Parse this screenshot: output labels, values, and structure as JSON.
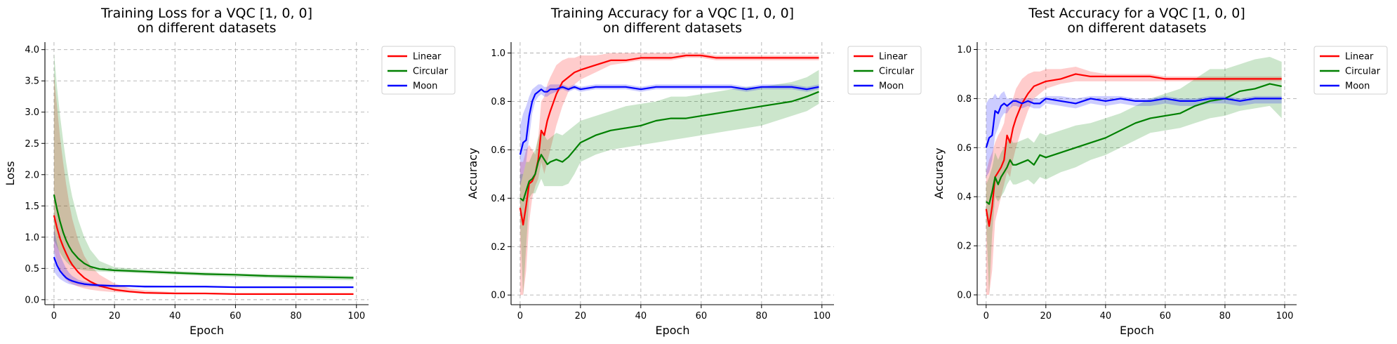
{
  "colors": {
    "Linear": "#ff0000",
    "Circular": "#008000",
    "Moon": "#0000ff"
  },
  "chart_data": [
    {
      "type": "line",
      "title": "Training Loss for a VQC [1, 0, 0]",
      "subtitle": "on different datasets",
      "xlabel": "Epoch",
      "ylabel": "Loss",
      "xlim": [
        -3,
        104
      ],
      "ylim": [
        -0.08,
        4.12
      ],
      "xticks": [
        0,
        20,
        40,
        60,
        80,
        100
      ],
      "yticks": [
        0.0,
        0.5,
        1.0,
        1.5,
        2.0,
        2.5,
        3.0,
        3.5,
        4.0
      ],
      "ytick_labels": [
        "0.0",
        "0.5",
        "1.0",
        "1.5",
        "2.0",
        "2.5",
        "3.0",
        "3.5",
        "4.0"
      ],
      "grid": true,
      "legend": "outside-top-right",
      "x": [
        0,
        1,
        2,
        3,
        4,
        5,
        6,
        8,
        10,
        12,
        15,
        20,
        25,
        30,
        40,
        50,
        60,
        70,
        80,
        90,
        99
      ],
      "series": [
        {
          "name": "Linear",
          "values": [
            1.35,
            1.15,
            0.98,
            0.85,
            0.74,
            0.64,
            0.56,
            0.44,
            0.35,
            0.29,
            0.22,
            0.16,
            0.13,
            0.11,
            0.1,
            0.1,
            0.09,
            0.09,
            0.09,
            0.09,
            0.09
          ],
          "lower": [
            0.8,
            0.6,
            0.48,
            0.38,
            0.32,
            0.28,
            0.25,
            0.21,
            0.18,
            0.16,
            0.14,
            0.12,
            0.11,
            0.1,
            0.09,
            0.09,
            0.08,
            0.08,
            0.08,
            0.08,
            0.08
          ],
          "upper": [
            3.6,
            3.1,
            2.6,
            2.2,
            1.85,
            1.55,
            1.3,
            0.95,
            0.7,
            0.55,
            0.4,
            0.26,
            0.18,
            0.15,
            0.12,
            0.11,
            0.1,
            0.1,
            0.1,
            0.1,
            0.1
          ]
        },
        {
          "name": "Circular",
          "values": [
            1.68,
            1.45,
            1.25,
            1.08,
            0.95,
            0.85,
            0.77,
            0.66,
            0.58,
            0.53,
            0.49,
            0.47,
            0.46,
            0.45,
            0.43,
            0.41,
            0.4,
            0.38,
            0.37,
            0.36,
            0.35
          ],
          "lower": [
            0.95,
            0.85,
            0.75,
            0.67,
            0.61,
            0.56,
            0.53,
            0.49,
            0.47,
            0.46,
            0.45,
            0.44,
            0.43,
            0.42,
            0.4,
            0.38,
            0.36,
            0.35,
            0.33,
            0.32,
            0.31
          ],
          "upper": [
            3.95,
            3.4,
            2.95,
            2.55,
            2.2,
            1.9,
            1.65,
            1.28,
            1.0,
            0.8,
            0.62,
            0.52,
            0.5,
            0.48,
            0.46,
            0.44,
            0.42,
            0.41,
            0.4,
            0.39,
            0.38
          ]
        },
        {
          "name": "Moon",
          "values": [
            0.68,
            0.55,
            0.46,
            0.4,
            0.35,
            0.32,
            0.3,
            0.27,
            0.25,
            0.24,
            0.23,
            0.22,
            0.22,
            0.21,
            0.21,
            0.21,
            0.2,
            0.2,
            0.2,
            0.2,
            0.2
          ],
          "lower": [
            0.45,
            0.38,
            0.33,
            0.3,
            0.27,
            0.25,
            0.24,
            0.22,
            0.21,
            0.21,
            0.2,
            0.2,
            0.2,
            0.19,
            0.19,
            0.19,
            0.19,
            0.19,
            0.19,
            0.19,
            0.19
          ],
          "upper": [
            1.15,
            0.9,
            0.72,
            0.6,
            0.5,
            0.43,
            0.38,
            0.32,
            0.29,
            0.27,
            0.25,
            0.24,
            0.23,
            0.23,
            0.22,
            0.22,
            0.21,
            0.21,
            0.21,
            0.21,
            0.21
          ]
        }
      ]
    },
    {
      "type": "line",
      "title": "Training Accuracy for a VQC [1, 0, 0]",
      "subtitle": "on different datasets",
      "xlabel": "Epoch",
      "ylabel": "Accuracy",
      "xlim": [
        -3,
        104
      ],
      "ylim": [
        -0.04,
        1.045
      ],
      "xticks": [
        0,
        20,
        40,
        60,
        80,
        100
      ],
      "yticks": [
        0.0,
        0.2,
        0.4,
        0.6,
        0.8,
        1.0
      ],
      "ytick_labels": [
        "0.0",
        "0.2",
        "0.4",
        "0.6",
        "0.8",
        "1.0"
      ],
      "grid": true,
      "legend": "outside-top-right",
      "x": [
        0,
        1,
        2,
        3,
        4,
        5,
        6,
        7,
        8,
        9,
        10,
        12,
        14,
        16,
        18,
        20,
        25,
        30,
        35,
        40,
        45,
        50,
        55,
        60,
        65,
        70,
        75,
        80,
        85,
        90,
        95,
        99
      ],
      "series": [
        {
          "name": "Linear",
          "values": [
            0.36,
            0.29,
            0.37,
            0.46,
            0.47,
            0.5,
            0.56,
            0.68,
            0.66,
            0.72,
            0.76,
            0.83,
            0.88,
            0.9,
            0.92,
            0.93,
            0.95,
            0.97,
            0.97,
            0.98,
            0.98,
            0.98,
            0.99,
            0.99,
            0.98,
            0.98,
            0.98,
            0.98,
            0.98,
            0.98,
            0.98,
            0.98
          ],
          "lower": [
            0.0,
            0.0,
            0.1,
            0.3,
            0.4,
            0.45,
            0.48,
            0.55,
            0.5,
            0.55,
            0.6,
            0.7,
            0.78,
            0.84,
            0.87,
            0.89,
            0.92,
            0.95,
            0.96,
            0.97,
            0.97,
            0.97,
            0.98,
            0.98,
            0.97,
            0.97,
            0.97,
            0.97,
            0.97,
            0.97,
            0.97,
            0.97
          ],
          "upper": [
            0.55,
            0.55,
            0.6,
            0.62,
            0.6,
            0.58,
            0.65,
            0.8,
            0.82,
            0.87,
            0.9,
            0.95,
            0.97,
            0.98,
            0.98,
            0.99,
            0.99,
            1.0,
            1.0,
            1.0,
            1.0,
            1.0,
            1.0,
            1.0,
            0.99,
            0.99,
            0.99,
            0.99,
            0.99,
            0.99,
            0.99,
            0.99
          ]
        },
        {
          "name": "Circular",
          "values": [
            0.4,
            0.39,
            0.43,
            0.47,
            0.48,
            0.5,
            0.55,
            0.58,
            0.56,
            0.54,
            0.55,
            0.56,
            0.55,
            0.57,
            0.6,
            0.63,
            0.66,
            0.68,
            0.69,
            0.7,
            0.72,
            0.73,
            0.73,
            0.74,
            0.75,
            0.76,
            0.77,
            0.78,
            0.79,
            0.8,
            0.82,
            0.84
          ],
          "lower": [
            0.3,
            0.0,
            0.2,
            0.4,
            0.42,
            0.42,
            0.45,
            0.48,
            0.45,
            0.45,
            0.45,
            0.45,
            0.45,
            0.46,
            0.5,
            0.55,
            0.58,
            0.6,
            0.61,
            0.62,
            0.63,
            0.64,
            0.65,
            0.66,
            0.67,
            0.68,
            0.69,
            0.7,
            0.72,
            0.74,
            0.76,
            0.79
          ],
          "upper": [
            0.5,
            0.5,
            0.55,
            0.55,
            0.58,
            0.6,
            0.65,
            0.68,
            0.66,
            0.64,
            0.65,
            0.67,
            0.66,
            0.68,
            0.7,
            0.72,
            0.74,
            0.76,
            0.78,
            0.79,
            0.8,
            0.82,
            0.82,
            0.83,
            0.84,
            0.85,
            0.86,
            0.86,
            0.87,
            0.88,
            0.9,
            0.93
          ]
        },
        {
          "name": "Moon",
          "values": [
            0.58,
            0.63,
            0.64,
            0.74,
            0.8,
            0.83,
            0.84,
            0.85,
            0.84,
            0.84,
            0.85,
            0.85,
            0.86,
            0.85,
            0.86,
            0.85,
            0.86,
            0.86,
            0.86,
            0.85,
            0.86,
            0.86,
            0.86,
            0.86,
            0.86,
            0.86,
            0.85,
            0.86,
            0.86,
            0.86,
            0.85,
            0.86
          ],
          "lower": [
            0.45,
            0.5,
            0.55,
            0.65,
            0.75,
            0.8,
            0.82,
            0.83,
            0.82,
            0.82,
            0.83,
            0.84,
            0.85,
            0.84,
            0.85,
            0.84,
            0.85,
            0.85,
            0.85,
            0.84,
            0.85,
            0.85,
            0.85,
            0.85,
            0.85,
            0.85,
            0.84,
            0.85,
            0.85,
            0.85,
            0.84,
            0.85
          ],
          "upper": [
            0.7,
            0.75,
            0.78,
            0.82,
            0.85,
            0.86,
            0.87,
            0.87,
            0.86,
            0.86,
            0.87,
            0.87,
            0.87,
            0.86,
            0.87,
            0.86,
            0.87,
            0.87,
            0.87,
            0.86,
            0.87,
            0.87,
            0.87,
            0.87,
            0.87,
            0.87,
            0.86,
            0.87,
            0.87,
            0.87,
            0.86,
            0.87
          ]
        }
      ]
    },
    {
      "type": "line",
      "title": "Test Accuracy for a VQC [1, 0, 0]",
      "subtitle": "on different datasets",
      "xlabel": "Epoch",
      "ylabel": "Accuracy",
      "xlim": [
        -3,
        104
      ],
      "ylim": [
        -0.04,
        1.03
      ],
      "xticks": [
        0,
        20,
        40,
        60,
        80,
        100
      ],
      "yticks": [
        0.0,
        0.2,
        0.4,
        0.6,
        0.8,
        1.0
      ],
      "ytick_labels": [
        "0.0",
        "0.2",
        "0.4",
        "0.6",
        "0.8",
        "1.0"
      ],
      "grid": true,
      "legend": "outside-top-right",
      "x": [
        0,
        1,
        2,
        3,
        4,
        5,
        6,
        7,
        8,
        9,
        10,
        12,
        14,
        16,
        18,
        20,
        25,
        30,
        35,
        40,
        45,
        50,
        55,
        60,
        65,
        70,
        75,
        80,
        85,
        90,
        95,
        99
      ],
      "series": [
        {
          "name": "Linear",
          "values": [
            0.35,
            0.28,
            0.36,
            0.48,
            0.5,
            0.52,
            0.55,
            0.65,
            0.62,
            0.68,
            0.72,
            0.78,
            0.82,
            0.85,
            0.86,
            0.87,
            0.88,
            0.9,
            0.89,
            0.89,
            0.89,
            0.89,
            0.89,
            0.88,
            0.88,
            0.88,
            0.88,
            0.88,
            0.88,
            0.88,
            0.88,
            0.88
          ],
          "lower": [
            0.0,
            0.0,
            0.1,
            0.3,
            0.35,
            0.4,
            0.45,
            0.5,
            0.48,
            0.55,
            0.6,
            0.68,
            0.75,
            0.8,
            0.82,
            0.84,
            0.86,
            0.87,
            0.87,
            0.87,
            0.87,
            0.87,
            0.87,
            0.87,
            0.87,
            0.87,
            0.87,
            0.87,
            0.87,
            0.87,
            0.87,
            0.87
          ],
          "upper": [
            0.5,
            0.55,
            0.58,
            0.62,
            0.65,
            0.67,
            0.7,
            0.78,
            0.76,
            0.8,
            0.84,
            0.88,
            0.9,
            0.91,
            0.91,
            0.92,
            0.92,
            0.93,
            0.91,
            0.9,
            0.9,
            0.9,
            0.9,
            0.89,
            0.89,
            0.89,
            0.89,
            0.89,
            0.89,
            0.89,
            0.89,
            0.89
          ]
        },
        {
          "name": "Circular",
          "values": [
            0.38,
            0.37,
            0.42,
            0.48,
            0.45,
            0.48,
            0.5,
            0.52,
            0.55,
            0.53,
            0.53,
            0.54,
            0.55,
            0.53,
            0.57,
            0.56,
            0.58,
            0.6,
            0.62,
            0.64,
            0.67,
            0.7,
            0.72,
            0.73,
            0.74,
            0.77,
            0.79,
            0.8,
            0.83,
            0.84,
            0.86,
            0.85
          ],
          "lower": [
            0.3,
            0.0,
            0.25,
            0.4,
            0.38,
            0.4,
            0.42,
            0.45,
            0.47,
            0.45,
            0.45,
            0.46,
            0.47,
            0.45,
            0.48,
            0.47,
            0.5,
            0.52,
            0.55,
            0.57,
            0.6,
            0.63,
            0.66,
            0.67,
            0.68,
            0.7,
            0.72,
            0.73,
            0.75,
            0.76,
            0.77,
            0.72
          ],
          "upper": [
            0.45,
            0.48,
            0.52,
            0.58,
            0.55,
            0.58,
            0.6,
            0.62,
            0.64,
            0.62,
            0.62,
            0.63,
            0.64,
            0.62,
            0.66,
            0.65,
            0.67,
            0.69,
            0.7,
            0.72,
            0.74,
            0.77,
            0.8,
            0.82,
            0.84,
            0.88,
            0.92,
            0.92,
            0.94,
            0.96,
            0.97,
            0.95
          ]
        },
        {
          "name": "Moon",
          "values": [
            0.6,
            0.64,
            0.65,
            0.75,
            0.74,
            0.77,
            0.78,
            0.77,
            0.78,
            0.79,
            0.79,
            0.78,
            0.79,
            0.78,
            0.78,
            0.8,
            0.79,
            0.78,
            0.8,
            0.79,
            0.8,
            0.79,
            0.79,
            0.8,
            0.79,
            0.79,
            0.8,
            0.8,
            0.79,
            0.8,
            0.8,
            0.8
          ],
          "lower": [
            0.48,
            0.5,
            0.55,
            0.65,
            0.68,
            0.72,
            0.74,
            0.74,
            0.76,
            0.77,
            0.77,
            0.76,
            0.77,
            0.76,
            0.76,
            0.78,
            0.77,
            0.76,
            0.78,
            0.77,
            0.78,
            0.77,
            0.77,
            0.78,
            0.77,
            0.77,
            0.78,
            0.78,
            0.77,
            0.78,
            0.78,
            0.78
          ],
          "upper": [
            0.78,
            0.8,
            0.8,
            0.82,
            0.8,
            0.82,
            0.83,
            0.8,
            0.8,
            0.8,
            0.8,
            0.8,
            0.8,
            0.8,
            0.8,
            0.81,
            0.81,
            0.8,
            0.81,
            0.81,
            0.81,
            0.8,
            0.8,
            0.81,
            0.8,
            0.8,
            0.81,
            0.81,
            0.8,
            0.81,
            0.81,
            0.81
          ]
        }
      ]
    }
  ]
}
